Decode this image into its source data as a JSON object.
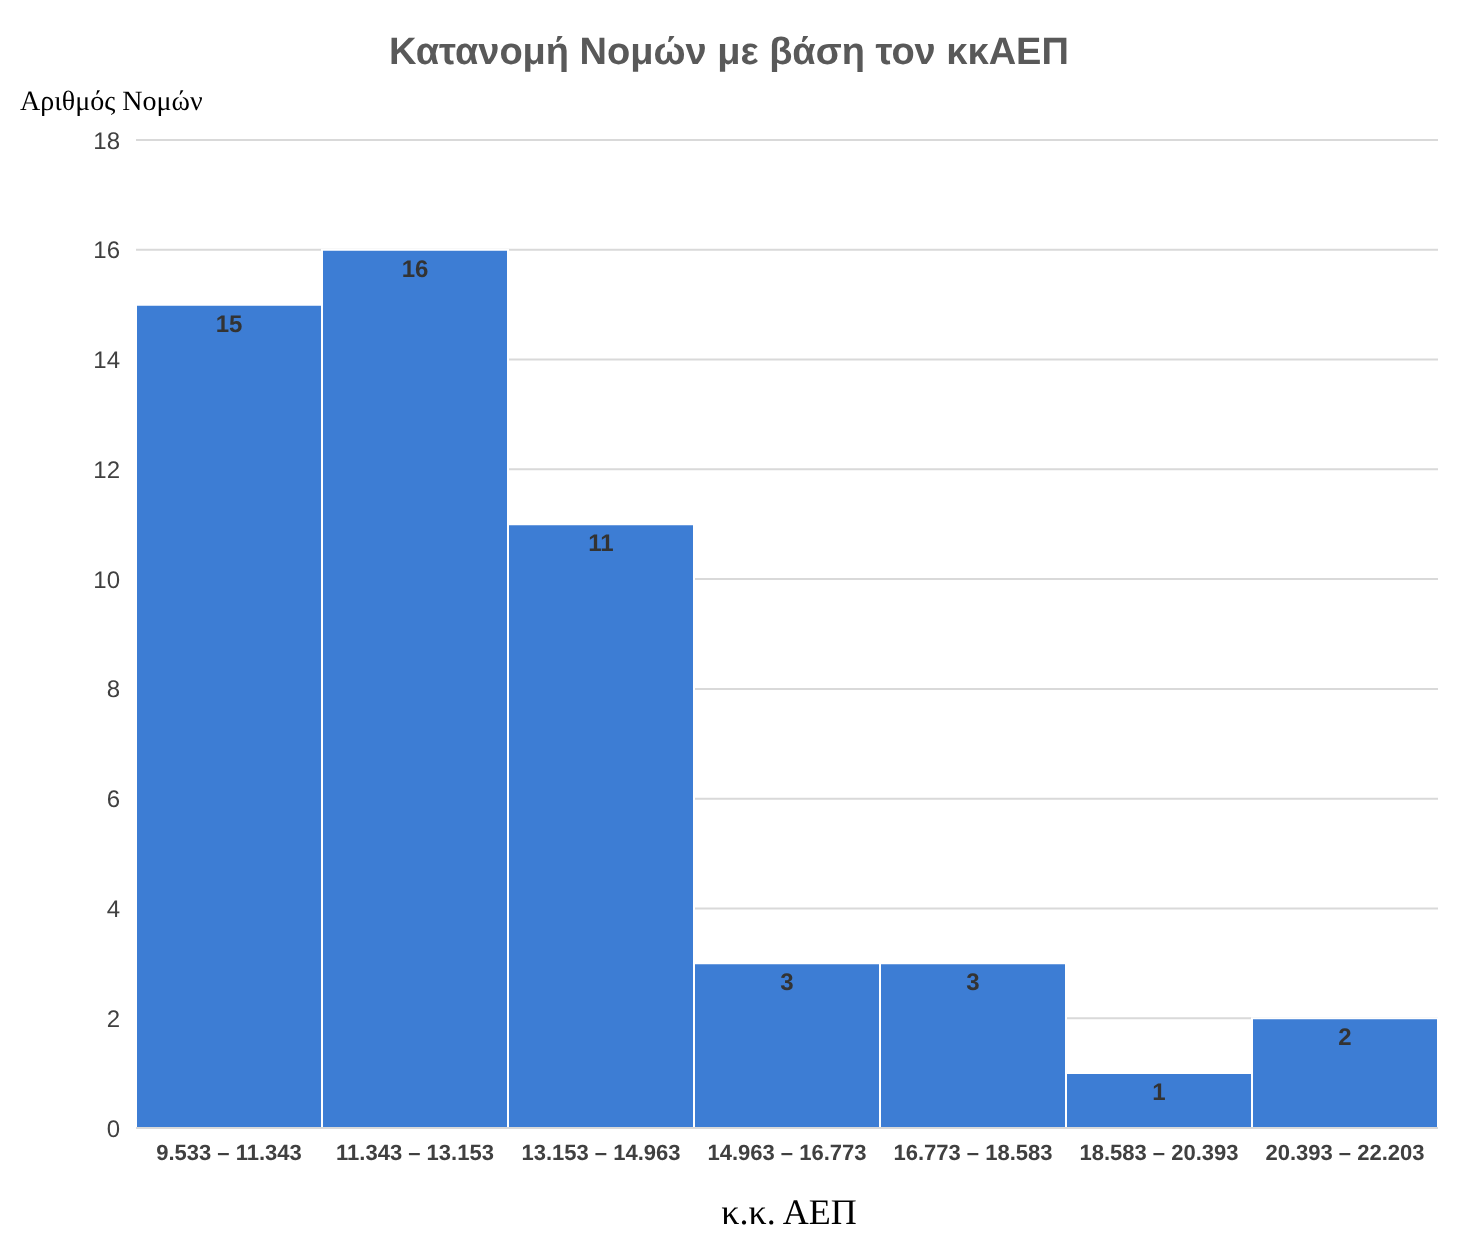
{
  "chart_data": {
    "type": "bar",
    "title": "Κατανομή Νομών με βάση τον κκΑΕΠ",
    "xlabel": "κ.κ. ΑΕΠ",
    "ylabel": "Αριθμός Νομών",
    "categories": [
      "9.533 – 11.343",
      "11.343 – 13.153",
      "13.153 – 14.963",
      "14.963 – 16.773",
      "16.773 – 18.583",
      "18.583 – 20.393",
      "20.393 – 22.203"
    ],
    "values": [
      15,
      16,
      11,
      3,
      3,
      1,
      2
    ],
    "color": "#3d7dd4",
    "ylim": [
      0,
      18
    ],
    "yticks": [
      0,
      2,
      4,
      6,
      8,
      10,
      12,
      14,
      16,
      18
    ],
    "grid": "y",
    "data_labels": true
  }
}
